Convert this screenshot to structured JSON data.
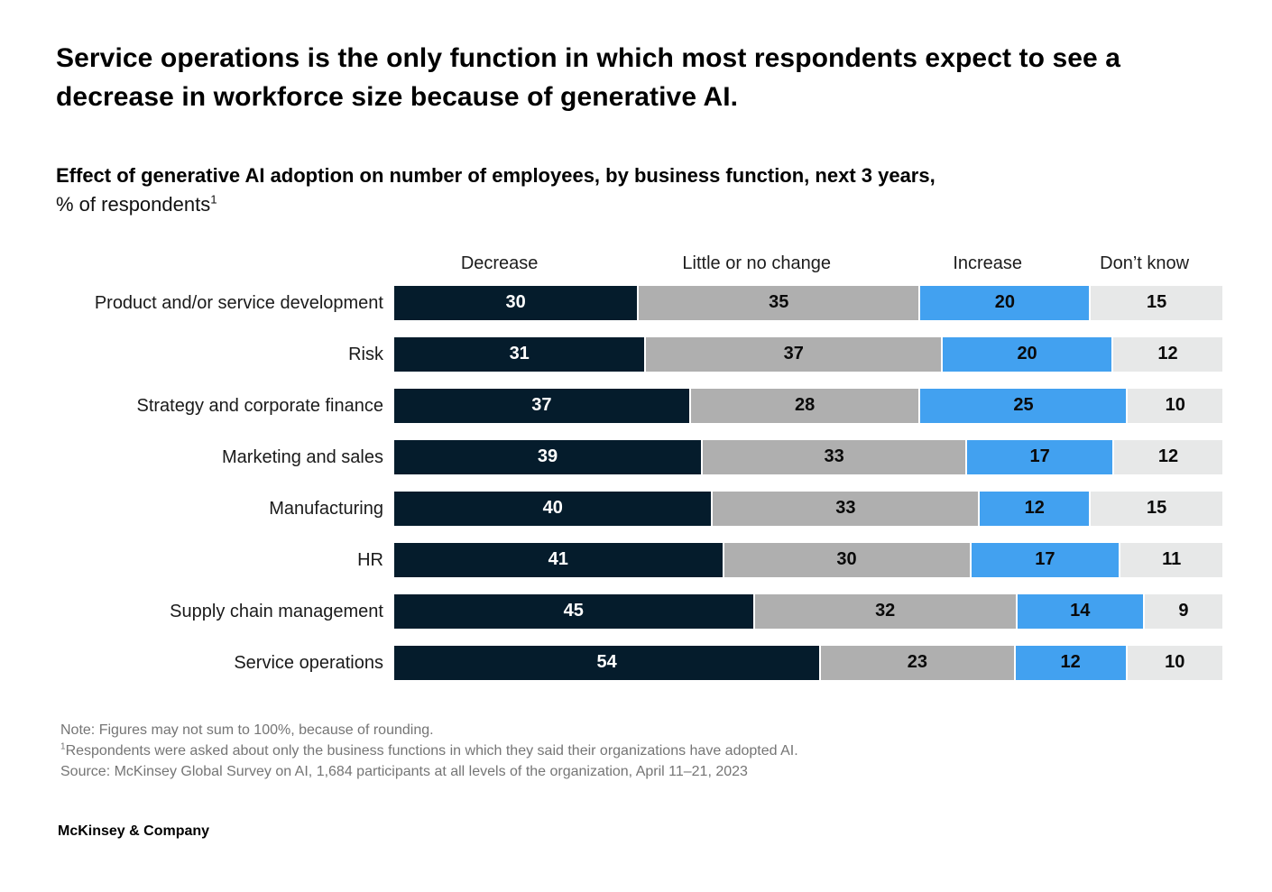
{
  "title": "Service operations is the only function in which most respondents expect to see a decrease in workforce size because of generative AI.",
  "subtitle": {
    "line1": "Effect of generative AI adoption on number of employees, by business function, next 3 years,",
    "line2": "% of respondents",
    "footnote_marker": "1"
  },
  "chart_data": {
    "type": "bar",
    "stacked": true,
    "orientation": "horizontal",
    "title": "Effect of generative AI adoption on number of employees, by business function, next 3 years, % of respondents",
    "value_unit": "% of respondents",
    "axis_total": 100,
    "legend_position": "top",
    "value_labels": "inside-center",
    "categories": [
      "Product and/or service development",
      "Risk",
      "Strategy and corporate finance",
      "Marketing and sales",
      "Manufacturing",
      "HR",
      "Supply chain management",
      "Service operations"
    ],
    "series": [
      {
        "name": "Decrease",
        "color": "#051C2C",
        "text_color": "#FFFFFF",
        "values": [
          30,
          31,
          37,
          39,
          40,
          41,
          45,
          54
        ]
      },
      {
        "name": "Little or no change",
        "color": "#AFAFAF",
        "text_color": "#0A0A0A",
        "values": [
          35,
          37,
          28,
          33,
          33,
          30,
          32,
          23
        ]
      },
      {
        "name": "Increase",
        "color": "#42A1F0",
        "text_color": "#0A0A0A",
        "values": [
          20,
          20,
          25,
          17,
          12,
          17,
          14,
          12
        ]
      },
      {
        "name": "Don’t know",
        "color": "#E7E8E8",
        "text_color": "#0A0A0A",
        "values": [
          15,
          12,
          10,
          12,
          15,
          11,
          9,
          10
        ]
      }
    ]
  },
  "footnotes": {
    "note": "Note: Figures may not sum to 100%, because of rounding.",
    "footnote1_marker": "1",
    "footnote1": "Respondents were asked about only the business functions in which they said their organizations have adopted AI.",
    "source": "Source: McKinsey Global Survey on AI, 1,684 participants at all levels of the organization, April 11–21, 2023"
  },
  "brand": "McKinsey & Company"
}
